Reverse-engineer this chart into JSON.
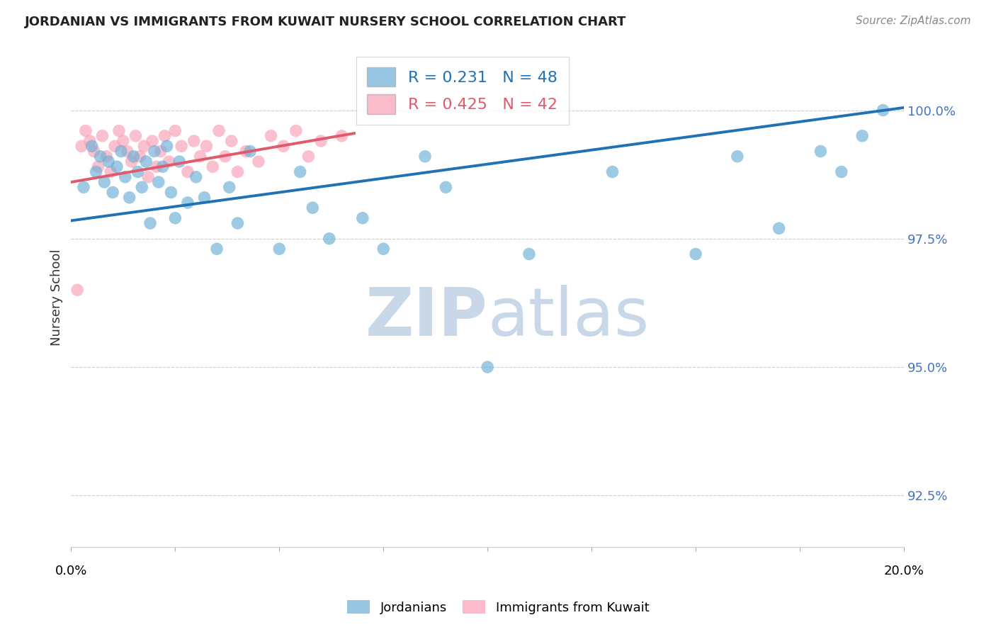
{
  "title": "JORDANIAN VS IMMIGRANTS FROM KUWAIT NURSERY SCHOOL CORRELATION CHART",
  "source": "Source: ZipAtlas.com",
  "ylabel": "Nursery School",
  "yticks": [
    92.5,
    95.0,
    97.5,
    100.0
  ],
  "ytick_labels": [
    "92.5%",
    "95.0%",
    "97.5%",
    "100.0%"
  ],
  "xlim": [
    0.0,
    20.0
  ],
  "ylim": [
    91.5,
    101.2
  ],
  "legend_blue_r": "0.231",
  "legend_blue_n": "48",
  "legend_pink_r": "0.425",
  "legend_pink_n": "42",
  "blue_color": "#6baed6",
  "pink_color": "#fa9fb5",
  "blue_line_color": "#2171b5",
  "pink_line_color": "#e05a6e",
  "watermark_color": "#c8d8e8",
  "blue_points_x": [
    0.3,
    0.5,
    0.6,
    0.7,
    0.8,
    0.9,
    1.0,
    1.1,
    1.2,
    1.3,
    1.4,
    1.5,
    1.6,
    1.7,
    1.8,
    1.9,
    2.0,
    2.1,
    2.2,
    2.3,
    2.4,
    2.5,
    2.6,
    2.8,
    3.0,
    3.2,
    3.5,
    3.8,
    4.0,
    4.3,
    5.0,
    5.5,
    5.8,
    6.2,
    7.0,
    7.5,
    8.5,
    9.0,
    10.0,
    11.0,
    13.0,
    15.0,
    16.0,
    17.0,
    18.0,
    18.5,
    19.0,
    19.5
  ],
  "blue_points_y": [
    98.5,
    99.3,
    98.8,
    99.1,
    98.6,
    99.0,
    98.4,
    98.9,
    99.2,
    98.7,
    98.3,
    99.1,
    98.8,
    98.5,
    99.0,
    97.8,
    99.2,
    98.6,
    98.9,
    99.3,
    98.4,
    97.9,
    99.0,
    98.2,
    98.7,
    98.3,
    97.3,
    98.5,
    97.8,
    99.2,
    97.3,
    98.8,
    98.1,
    97.5,
    97.9,
    97.3,
    99.1,
    98.5,
    95.0,
    97.2,
    98.8,
    97.2,
    99.1,
    97.7,
    99.2,
    98.8,
    99.5,
    100.0
  ],
  "blue_line_x": [
    0.0,
    20.0
  ],
  "blue_line_y": [
    97.85,
    100.05
  ],
  "pink_points_x": [
    0.15,
    0.25,
    0.35,
    0.45,
    0.55,
    0.65,
    0.75,
    0.85,
    0.95,
    1.05,
    1.15,
    1.25,
    1.35,
    1.45,
    1.55,
    1.65,
    1.75,
    1.85,
    1.95,
    2.05,
    2.15,
    2.25,
    2.35,
    2.5,
    2.65,
    2.8,
    2.95,
    3.1,
    3.25,
    3.4,
    3.55,
    3.7,
    3.85,
    4.0,
    4.2,
    4.5,
    4.8,
    5.1,
    5.4,
    5.7,
    6.0,
    6.5
  ],
  "pink_points_y": [
    96.5,
    99.3,
    99.6,
    99.4,
    99.2,
    98.9,
    99.5,
    99.1,
    98.8,
    99.3,
    99.6,
    99.4,
    99.2,
    99.0,
    99.5,
    99.1,
    99.3,
    98.7,
    99.4,
    98.9,
    99.2,
    99.5,
    99.0,
    99.6,
    99.3,
    98.8,
    99.4,
    99.1,
    99.3,
    98.9,
    99.6,
    99.1,
    99.4,
    98.8,
    99.2,
    99.0,
    99.5,
    99.3,
    99.6,
    99.1,
    99.4,
    99.5
  ],
  "pink_line_x": [
    0.0,
    6.8
  ],
  "pink_line_y": [
    98.6,
    99.55
  ]
}
